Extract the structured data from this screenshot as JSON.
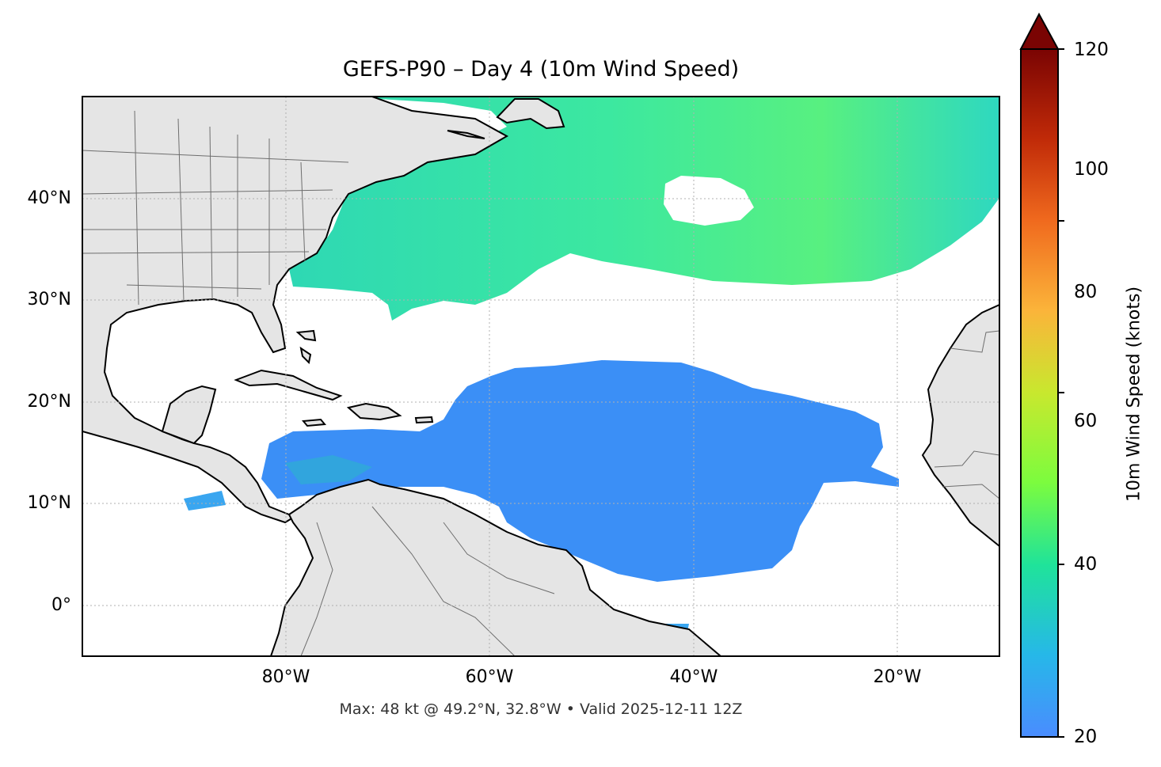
{
  "title": "GEFS-P90 – Day 4 (10m Wind Speed)",
  "footer": "Max: 48 kt @ 49.2°N, 32.8°W • Valid 2025-12-11 12Z",
  "axes": {
    "lat_labels": [
      "40°N",
      "30°N",
      "20°N",
      "10°N",
      "0°"
    ],
    "lon_labels": [
      "80°W",
      "60°W",
      "40°W",
      "20°W"
    ]
  },
  "colorbar": {
    "label": "10m Wind Speed (knots)",
    "ticks": [
      "20",
      "40",
      "60",
      "80",
      "100",
      "120"
    ],
    "extend": "max",
    "colors": [
      "#4a8cff",
      "#26b8e8",
      "#1fe39a",
      "#7cfc3e",
      "#c8e82e",
      "#fbb43a",
      "#f06a1e",
      "#c02a08",
      "#7a0403"
    ]
  },
  "chart_data": {
    "type": "heatmap",
    "variable": "10m Wind Speed (knots)",
    "colorbar_range": [
      20,
      120
    ],
    "lat_range": [
      -5,
      50
    ],
    "lon_range": [
      -100,
      -10
    ],
    "max_value": 48,
    "max_location": {
      "lat": 49.2,
      "lon": -32.8
    },
    "valid_time": "2025-12-11 12Z",
    "gridlines": true
  },
  "colors": {
    "land": "#e5e5e5",
    "coast": "#000000",
    "borders": "#6e6e6e",
    "ocean": "#ffffff"
  }
}
